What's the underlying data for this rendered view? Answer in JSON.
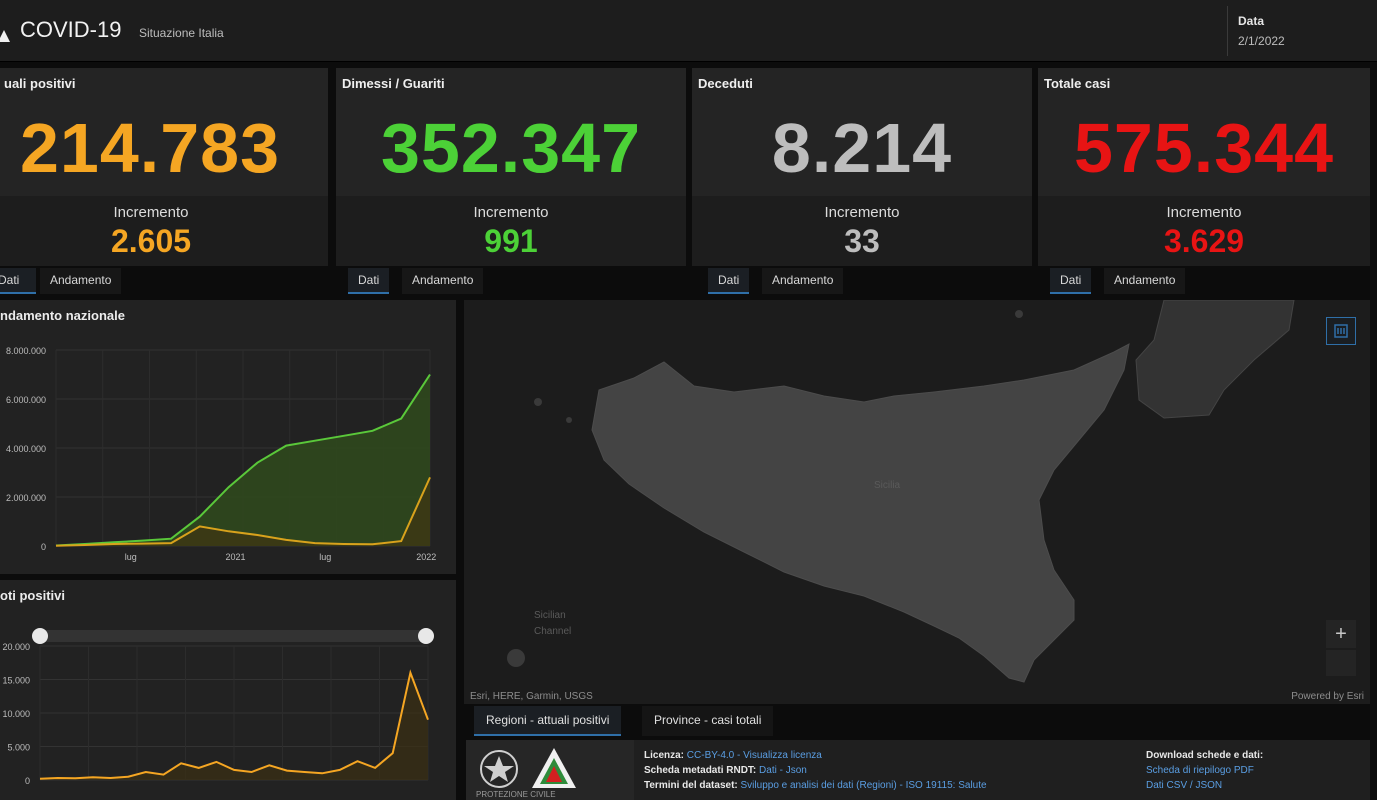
{
  "header": {
    "title": "COVID-19",
    "subtitle": "Situazione Italia",
    "date_label": "Data",
    "date_value": "2/1/2022"
  },
  "kpis": [
    {
      "title": "uali positivi",
      "value": "214.783",
      "inc_label": "Incremento",
      "inc_value": "2.605",
      "color": "#f5a623"
    },
    {
      "title": "Dimessi / Guariti",
      "value": "352.347",
      "inc_label": "Incremento",
      "inc_value": "991",
      "color": "#4cd137"
    },
    {
      "title": "Deceduti",
      "value": "8.214",
      "inc_label": "Incremento",
      "inc_value": "33",
      "color": "#bdbdbd"
    },
    {
      "title": "Totale casi",
      "value": "575.344",
      "inc_label": "Incremento",
      "inc_value": "3.629",
      "color": "#e81414"
    }
  ],
  "kpi_tabs": {
    "dati": "Dati",
    "andamento": "Andamento"
  },
  "charts": [
    {
      "title": "ndamento nazionale",
      "chart_data": {
        "type": "area",
        "x_ticks": [
          "lug",
          "2021",
          "lug",
          "2022"
        ],
        "y_ticks": [
          "8.000.000",
          "6.000.000",
          "4.000.000",
          "2.000.000",
          "0"
        ],
        "ylim": [
          0,
          8000000
        ],
        "series": [
          {
            "color": "#5ac83a",
            "values": [
              20000,
              80000,
              150000,
              220000,
              300000,
              1200000,
              2400000,
              3400000,
              4100000,
              4300000,
              4500000,
              4700000,
              5200000,
              7000000
            ]
          },
          {
            "color": "#d8a21c",
            "values": [
              10000,
              40000,
              80000,
              100000,
              120000,
              800000,
              600000,
              450000,
              250000,
              120000,
              80000,
              70000,
              200000,
              2800000
            ]
          }
        ]
      }
    },
    {
      "title": "oti positivi",
      "chart_data": {
        "type": "line",
        "y_ticks": [
          "20.000",
          "15.000",
          "10.000",
          "5.000",
          "0"
        ],
        "ylim": [
          0,
          20000
        ],
        "series": [
          {
            "color": "#f5a623",
            "values": [
              200,
              300,
              250,
              400,
              300,
              500,
              1200,
              800,
              2500,
              1800,
              2700,
              1500,
              1200,
              2200,
              1400,
              1200,
              1000,
              1500,
              2800,
              1800,
              4000,
              16000,
              9000
            ]
          }
        ]
      }
    }
  ],
  "map": {
    "attribution_left": "Esri, HERE, Garmin, USGS",
    "attribution_right": "Powered by Esri",
    "region_label": "Sicilia",
    "sea_label_1": "Sicilian",
    "sea_label_2": "Channel",
    "zoom_in": "+"
  },
  "bottom_tabs": {
    "regioni": "Regioni - attuali positivi",
    "province": "Province - casi totali"
  },
  "info": {
    "licenza_label": "Licenza:",
    "licenza_value": "CC-BY-4.0 - Visualizza licenza",
    "scheda_label": "Scheda metadati RNDT:",
    "scheda_value": "Dati - Json",
    "termini_label": "Termini del dataset:",
    "termini_value": "Sviluppo e analisi dei dati (Regioni) - ISO 19115: Salute",
    "download_title": "Download schede e dati:",
    "download_1": "Scheda di riepilogo PDF",
    "download_2": "Dati CSV / JSON",
    "logo_caption": "PROTEZIONE CIVILE"
  }
}
